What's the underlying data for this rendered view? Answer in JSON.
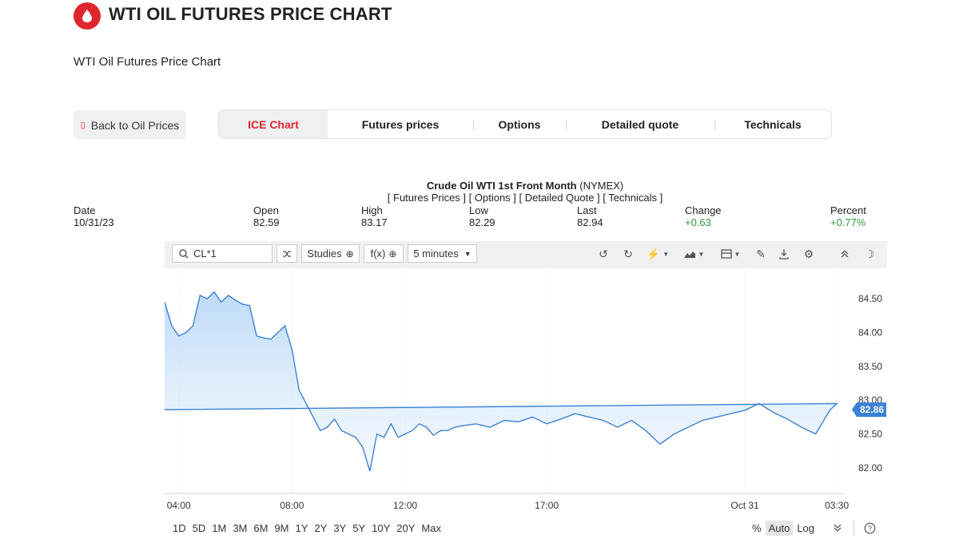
{
  "header": {
    "title": "WTI OIL FUTURES PRICE CHART",
    "subtitle": "WTI Oil Futures Price Chart",
    "logo_icon": "oil-drop-icon",
    "brand_color": "#e0262d"
  },
  "nav": {
    "back_label": "Back to Oil Prices",
    "tabs": [
      {
        "label": "ICE Chart",
        "active": true
      },
      {
        "label": "Futures prices",
        "active": false
      },
      {
        "label": "Options",
        "active": false
      },
      {
        "label": "Detailed quote",
        "active": false
      },
      {
        "label": "Technicals",
        "active": false
      }
    ]
  },
  "instrument": {
    "name": "Crude Oil WTI 1st Front Month",
    "exchange": "(NYMEX)",
    "links": "[ Futures Prices ] [ Options ] [ Detailed Quote ] [ Technicals ]"
  },
  "quote": {
    "date": {
      "label": "Date",
      "value": "10/31/23"
    },
    "open": {
      "label": "Open",
      "value": "82.59"
    },
    "high": {
      "label": "High",
      "value": "83.17"
    },
    "low": {
      "label": "Low",
      "value": "82.29"
    },
    "last": {
      "label": "Last",
      "value": "82.94"
    },
    "change": {
      "label": "Change",
      "value": "+0.63"
    },
    "percent": {
      "label": "Percent",
      "value": "+0.77%"
    }
  },
  "toolbar": {
    "symbol": "CL*1",
    "studies_label": "Studies",
    "fx_label": "f(x)",
    "interval_label": "5 minutes"
  },
  "ranges": [
    "1D",
    "5D",
    "1M",
    "3M",
    "6M",
    "9M",
    "1Y",
    "2Y",
    "3Y",
    "5Y",
    "10Y",
    "20Y",
    "Max"
  ],
  "scale_options": [
    "%",
    "Auto",
    "Log"
  ],
  "scale_selected": "Auto",
  "chart_data": {
    "type": "area",
    "x_ticks": [
      "04:00",
      "08:00",
      "12:00",
      "17:00",
      "Oct 31",
      "03:30"
    ],
    "y_ticks": [
      "84.50",
      "84.00",
      "83.50",
      "83.00",
      "82.50",
      "82.00"
    ],
    "ylim": [
      81.62,
      84.95
    ],
    "last_value_label": "82.86",
    "line_color": "#3b82d6",
    "grid": "vertical",
    "series": [
      {
        "x": [
          "03:30",
          "03:45",
          "04:00",
          "04:15",
          "04:30",
          "04:45",
          "05:00",
          "05:15",
          "05:30",
          "05:45",
          "06:00",
          "06:15",
          "06:30",
          "06:45",
          "07:00",
          "07:15",
          "07:30",
          "07:45",
          "08:00",
          "08:15",
          "08:30",
          "08:45",
          "09:00",
          "09:15",
          "09:30",
          "09:45",
          "10:00",
          "10:15",
          "10:30",
          "10:45",
          "11:00",
          "11:15",
          "11:30",
          "11:45",
          "12:00",
          "12:15",
          "12:30",
          "12:45",
          "13:00",
          "13:15",
          "13:30",
          "13:45",
          "14:00",
          "14:30",
          "15:00",
          "15:30",
          "16:00",
          "16:30",
          "17:00",
          "17:30",
          "18:00",
          "18:30",
          "19:00",
          "19:30",
          "20:00",
          "20:30",
          "21:00",
          "21:30",
          "22:00",
          "22:30",
          "23:00",
          "23:30",
          "00:00",
          "00:30",
          "01:00",
          "01:30",
          "02:00",
          "02:30",
          "03:00",
          "03:15",
          "03:30"
        ],
        "values": [
          84.45,
          84.1,
          83.95,
          84.0,
          84.1,
          84.55,
          84.5,
          84.6,
          84.45,
          84.55,
          84.48,
          84.42,
          84.4,
          83.95,
          83.92,
          83.9,
          84.0,
          84.1,
          83.75,
          83.15,
          82.95,
          82.75,
          82.55,
          82.6,
          82.72,
          82.55,
          82.5,
          82.45,
          82.3,
          81.95,
          82.5,
          82.45,
          82.65,
          82.45,
          82.5,
          82.55,
          82.65,
          82.6,
          82.48,
          82.55,
          82.55,
          82.6,
          82.62,
          82.65,
          82.6,
          82.7,
          82.68,
          82.75,
          82.65,
          82.72,
          82.8,
          82.75,
          82.7,
          82.6,
          82.7,
          82.55,
          82.35,
          82.5,
          82.6,
          82.7,
          82.75,
          82.8,
          82.85,
          82.95,
          82.82,
          82.72,
          82.6,
          82.5,
          82.85,
          82.95,
          82.86
        ]
      }
    ]
  }
}
